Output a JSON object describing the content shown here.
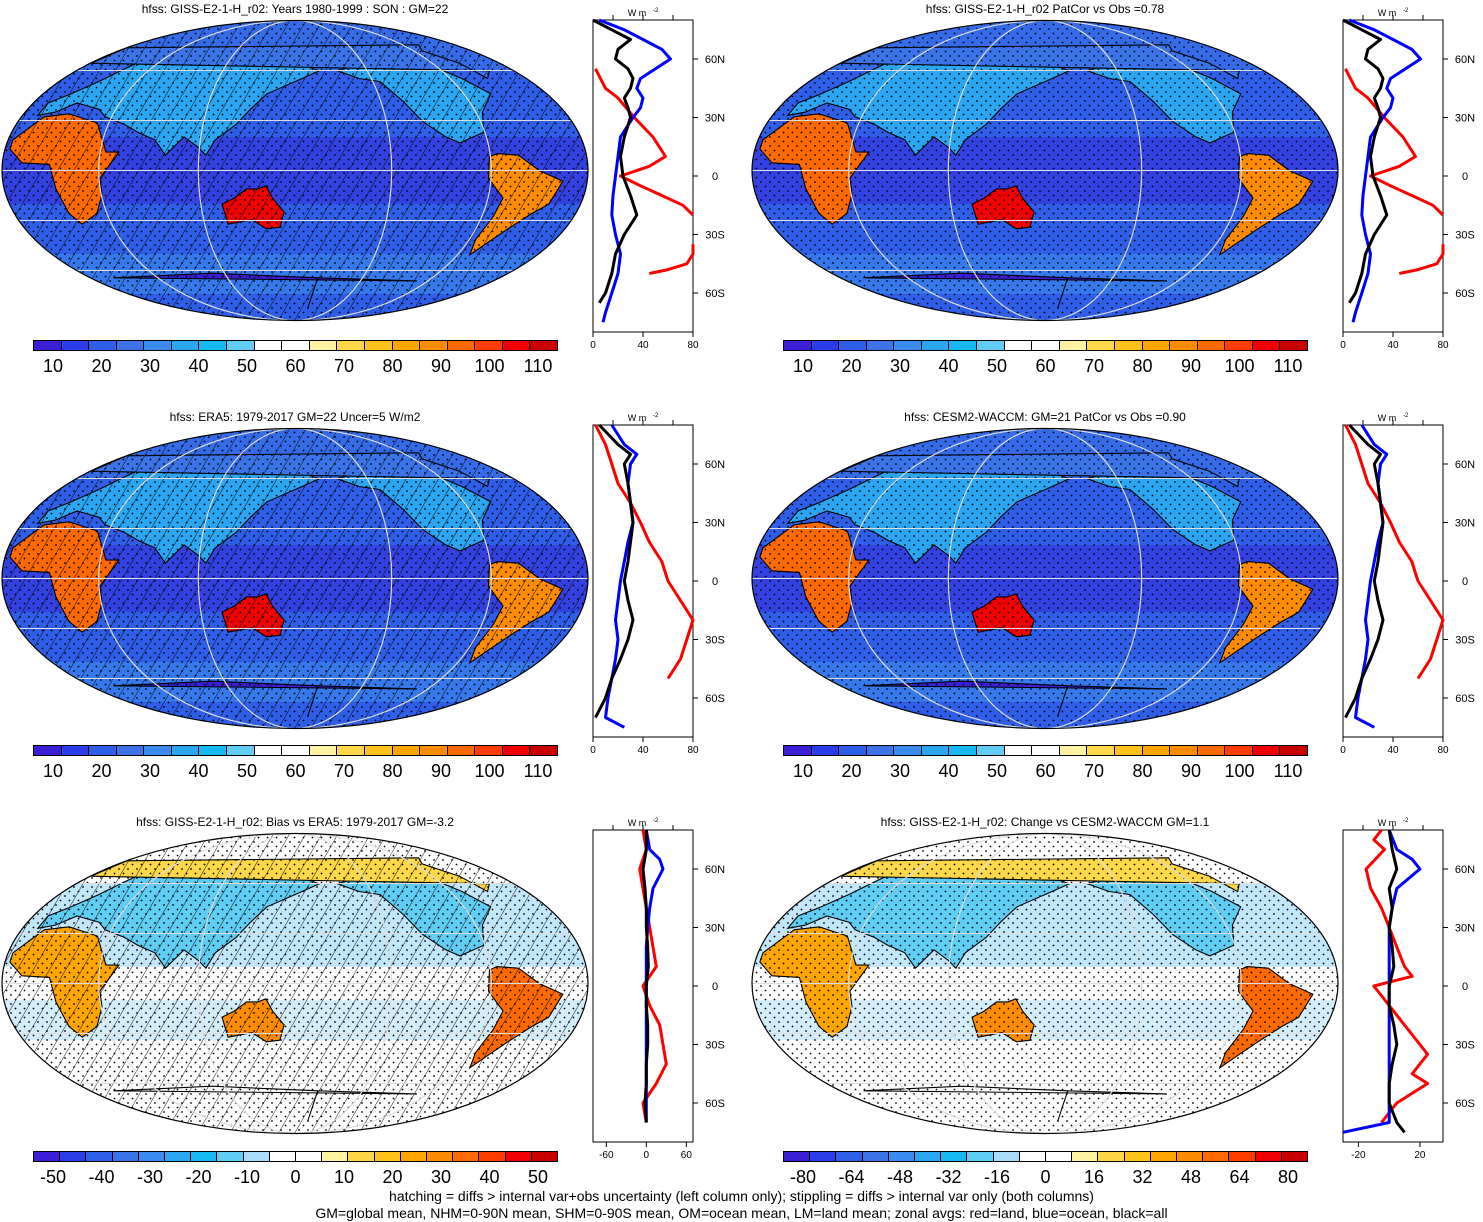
{
  "footer": {
    "line1": "hatching = diffs > internal var+obs uncertainty (left column only); stippling = diffs > internal var only (both columns)",
    "line2": "GM=global mean, NHM=0-90N mean, SHM=0-90S mean, OM=ocean mean, LM=land mean; zonal avgs: red=land, blue=ocean, black=all"
  },
  "zonal_units": "W m",
  "zonal_units_exp": "-2",
  "colors": {
    "land": "#ff0000",
    "ocean": "#0000ff",
    "all": "#000000",
    "abs_scale": [
      "#3a1fd6",
      "#2a3de8",
      "#2f5ee8",
      "#3a74e8",
      "#3b8cf0",
      "#2aa6f2",
      "#16b9f4",
      "#60cdf4",
      "#ffffff",
      "#ffffff",
      "#fff2a0",
      "#ffd84a",
      "#ffc21c",
      "#ffa500",
      "#ff8c00",
      "#ff6a00",
      "#ff3c00",
      "#f00000",
      "#c80000"
    ],
    "diff_scale": [
      "#3a1fd6",
      "#2a3de8",
      "#2f5ee8",
      "#3a74e8",
      "#3b8cf0",
      "#2aa6f2",
      "#16b9f4",
      "#60cdf4",
      "#a8dcf8",
      "#ffffff",
      "#ffffff",
      "#fff2a0",
      "#ffd84a",
      "#ffc21c",
      "#ffa500",
      "#ff8c00",
      "#ff6a00",
      "#ff3c00",
      "#f00000",
      "#c80000"
    ]
  },
  "chart_data": [
    {
      "type": "heatmap",
      "title": "hfss: GISS-E2-1-H_r02: Years 1980-1999 : SON : GM=22",
      "colorbar_labels": [
        "10",
        "20",
        "30",
        "40",
        "50",
        "60",
        "70",
        "80",
        "90",
        "100",
        "110"
      ],
      "hatching": true,
      "stippling": true,
      "zonal": {
        "type": "line",
        "xlabel": "W m-2",
        "xticks": [
          "0",
          "40",
          "80"
        ],
        "xlim": [
          0,
          80
        ],
        "yticks": [
          "60N",
          "30N",
          "0",
          "30S",
          "60S"
        ],
        "series": [
          {
            "name": "land",
            "lat": [
              55,
              45,
              40,
              30,
              20,
              10,
              5,
              0,
              -5,
              -10,
              -15,
              -20
            ],
            "values": [
              2,
              10,
              20,
              33,
              48,
              58,
              45,
              22,
              38,
              55,
              72,
              80
            ]
          },
          {
            "name": "land",
            "lat": [
              -35,
              -40,
              -45,
              -48,
              -50
            ],
            "values": [
              90,
              80,
              75,
              60,
              45
            ]
          },
          {
            "name": "ocean",
            "lat": [
              80,
              75,
              70,
              65,
              60,
              55,
              50,
              45,
              40,
              35,
              30,
              20,
              10,
              0,
              -10,
              -20,
              -30,
              -40,
              -50,
              -60,
              -70,
              -75
            ],
            "values": [
              5,
              25,
              40,
              55,
              62,
              50,
              38,
              35,
              40,
              38,
              32,
              22,
              20,
              18,
              16,
              15,
              18,
              22,
              20,
              15,
              10,
              8
            ]
          },
          {
            "name": "all",
            "lat": [
              80,
              75,
              70,
              65,
              60,
              55,
              50,
              45,
              40,
              35,
              30,
              20,
              10,
              0,
              -10,
              -20,
              -30,
              -40,
              -50,
              -60,
              -65
            ],
            "values": [
              0,
              15,
              30,
              20,
              18,
              28,
              32,
              30,
              25,
              28,
              30,
              25,
              22,
              24,
              30,
              35,
              25,
              18,
              15,
              10,
              5
            ]
          }
        ]
      }
    },
    {
      "type": "heatmap",
      "title": "hfss: GISS-E2-1-H_r02 PatCor vs Obs =0.78",
      "colorbar_labels": [
        "10",
        "20",
        "30",
        "40",
        "50",
        "60",
        "70",
        "80",
        "90",
        "100",
        "110"
      ],
      "hatching": false,
      "stippling": true,
      "zonal": {
        "type": "line",
        "xlabel": "W m-2",
        "xticks": [
          "0",
          "40",
          "80"
        ],
        "xlim": [
          0,
          80
        ],
        "yticks": [
          "60N",
          "30N",
          "0",
          "30S",
          "60S"
        ],
        "series": [
          {
            "name": "land",
            "lat": [
              55,
              45,
              40,
              30,
              20,
              10,
              5,
              0,
              -5,
              -10,
              -15,
              -20
            ],
            "values": [
              2,
              10,
              20,
              33,
              48,
              58,
              45,
              22,
              38,
              55,
              72,
              80
            ]
          },
          {
            "name": "land",
            "lat": [
              -35,
              -40,
              -45,
              -48,
              -50
            ],
            "values": [
              90,
              80,
              75,
              60,
              45
            ]
          },
          {
            "name": "ocean",
            "lat": [
              80,
              75,
              70,
              65,
              60,
              55,
              50,
              45,
              40,
              35,
              30,
              20,
              10,
              0,
              -10,
              -20,
              -30,
              -40,
              -50,
              -60,
              -70,
              -75
            ],
            "values": [
              5,
              25,
              40,
              55,
              62,
              50,
              38,
              35,
              40,
              38,
              32,
              22,
              20,
              18,
              16,
              15,
              18,
              22,
              20,
              15,
              10,
              8
            ]
          },
          {
            "name": "all",
            "lat": [
              80,
              75,
              70,
              65,
              60,
              55,
              50,
              45,
              40,
              35,
              30,
              20,
              10,
              0,
              -10,
              -20,
              -30,
              -40,
              -50,
              -60,
              -65
            ],
            "values": [
              0,
              15,
              30,
              20,
              18,
              28,
              32,
              30,
              25,
              28,
              30,
              25,
              22,
              24,
              30,
              35,
              25,
              18,
              15,
              10,
              5
            ]
          }
        ]
      }
    },
    {
      "type": "heatmap",
      "title": "hfss: ERA5: 1979-2017 GM=22 Uncer=5 W/m2",
      "colorbar_labels": [
        "10",
        "20",
        "30",
        "40",
        "50",
        "60",
        "70",
        "80",
        "90",
        "100",
        "110"
      ],
      "hatching": true,
      "stippling": true,
      "zonal": {
        "type": "line",
        "xlabel": "W m-2",
        "xticks": [
          "0",
          "40",
          "80"
        ],
        "xlim": [
          0,
          80
        ],
        "yticks": [
          "60N",
          "30N",
          "0",
          "30S",
          "60S"
        ],
        "series": [
          {
            "name": "land",
            "lat": [
              80,
              70,
              60,
              50,
              40,
              30,
              20,
              10,
              0,
              -10,
              -20,
              -30,
              -40,
              -50
            ],
            "values": [
              2,
              10,
              15,
              20,
              30,
              38,
              45,
              55,
              60,
              70,
              80,
              75,
              70,
              60
            ]
          },
          {
            "name": "ocean",
            "lat": [
              80,
              70,
              65,
              60,
              50,
              40,
              30,
              20,
              10,
              0,
              -10,
              -20,
              -30,
              -40,
              -50,
              -60,
              -70,
              -75
            ],
            "values": [
              15,
              25,
              35,
              30,
              28,
              30,
              32,
              28,
              25,
              22,
              20,
              18,
              20,
              18,
              15,
              12,
              10,
              25
            ]
          },
          {
            "name": "all",
            "lat": [
              80,
              70,
              65,
              60,
              50,
              40,
              30,
              20,
              10,
              0,
              -10,
              -20,
              -30,
              -40,
              -50,
              -60,
              -70
            ],
            "values": [
              5,
              20,
              30,
              25,
              28,
              30,
              32,
              30,
              28,
              25,
              28,
              32,
              28,
              22,
              15,
              10,
              2
            ]
          }
        ]
      }
    },
    {
      "type": "heatmap",
      "title": "hfss: CESM2-WACCM: GM=21 PatCor vs Obs =0.90",
      "colorbar_labels": [
        "10",
        "20",
        "30",
        "40",
        "50",
        "60",
        "70",
        "80",
        "90",
        "100",
        "110"
      ],
      "hatching": false,
      "stippling": true,
      "zonal": {
        "type": "line",
        "xlabel": "W m-2",
        "xticks": [
          "0",
          "40",
          "80"
        ],
        "xlim": [
          0,
          80
        ],
        "yticks": [
          "60N",
          "30N",
          "0",
          "30S",
          "60S"
        ],
        "series": [
          {
            "name": "land",
            "lat": [
              80,
              70,
              60,
              50,
              40,
              30,
              20,
              10,
              0,
              -10,
              -20,
              -30,
              -40,
              -50
            ],
            "values": [
              2,
              10,
              15,
              20,
              30,
              38,
              45,
              55,
              60,
              70,
              80,
              75,
              70,
              60
            ]
          },
          {
            "name": "ocean",
            "lat": [
              80,
              70,
              65,
              60,
              50,
              40,
              30,
              20,
              10,
              0,
              -10,
              -20,
              -30,
              -40,
              -50,
              -60,
              -70,
              -75
            ],
            "values": [
              15,
              25,
              35,
              30,
              28,
              30,
              32,
              28,
              25,
              22,
              20,
              18,
              20,
              18,
              15,
              12,
              10,
              25
            ]
          },
          {
            "name": "all",
            "lat": [
              80,
              70,
              65,
              60,
              50,
              40,
              30,
              20,
              10,
              0,
              -10,
              -20,
              -30,
              -40,
              -50,
              -60,
              -70
            ],
            "values": [
              5,
              20,
              30,
              25,
              28,
              30,
              32,
              30,
              28,
              25,
              28,
              32,
              28,
              22,
              15,
              10,
              2
            ]
          }
        ]
      }
    },
    {
      "type": "heatmap",
      "title": "hfss: GISS-E2-1-H_r02: Bias vs ERA5: 1979-2017  GM=-3.2",
      "colorbar_labels": [
        "-50",
        "-40",
        "-30",
        "-20",
        "-10",
        "0",
        "10",
        "20",
        "30",
        "40",
        "50"
      ],
      "hatching": true,
      "stippling": true,
      "zonal": {
        "type": "line",
        "xlabel": "W m-2",
        "xticks": [
          "-60",
          "0",
          "60"
        ],
        "xlim": [
          -80,
          70
        ],
        "yticks": [
          "60N",
          "30N",
          "0",
          "30S",
          "60S"
        ],
        "series": [
          {
            "name": "land",
            "lat": [
              80,
              70,
              60,
              50,
              40,
              30,
              20,
              10,
              0,
              -10,
              -20,
              -30,
              -40,
              -50,
              -60,
              -70
            ],
            "values": [
              -5,
              0,
              -10,
              -5,
              0,
              5,
              10,
              15,
              -5,
              5,
              20,
              25,
              30,
              15,
              -5,
              0
            ]
          },
          {
            "name": "ocean",
            "lat": [
              80,
              70,
              65,
              60,
              50,
              40,
              30,
              20,
              10,
              0,
              -10,
              -20,
              -30,
              -40,
              -50,
              -60,
              -70
            ],
            "values": [
              0,
              5,
              20,
              25,
              10,
              5,
              2,
              0,
              0,
              0,
              0,
              0,
              0,
              0,
              0,
              0,
              0
            ]
          },
          {
            "name": "all",
            "lat": [
              80,
              70,
              60,
              50,
              40,
              30,
              20,
              10,
              0,
              -10,
              -20,
              -30,
              -40,
              -50,
              -60,
              -70
            ],
            "values": [
              0,
              0,
              -5,
              -2,
              0,
              0,
              2,
              3,
              0,
              0,
              2,
              2,
              0,
              0,
              -2,
              0
            ]
          }
        ]
      }
    },
    {
      "type": "heatmap",
      "title": "hfss: GISS-E2-1-H_r02: Change vs CESM2-WACCM GM=1.1",
      "colorbar_labels": [
        "-80",
        "-64",
        "-48",
        "-32",
        "-16",
        "0",
        "16",
        "32",
        "48",
        "64",
        "80"
      ],
      "hatching": false,
      "stippling": true,
      "zonal": {
        "type": "line",
        "xlabel": "W m-2",
        "xticks": [
          "-20",
          "20"
        ],
        "xlim": [
          -30,
          35
        ],
        "yticks": [
          "60N",
          "30N",
          "0",
          "30S",
          "60S"
        ],
        "series": [
          {
            "name": "land",
            "lat": [
              80,
              75,
              70,
              60,
              50,
              40,
              30,
              20,
              10,
              5,
              0,
              -10,
              -20,
              -30,
              -35,
              -40,
              -45,
              -50,
              -60,
              -70
            ],
            "values": [
              -5,
              -10,
              -3,
              -15,
              -12,
              -5,
              0,
              5,
              10,
              15,
              -10,
              0,
              10,
              20,
              25,
              20,
              15,
              25,
              5,
              -5
            ]
          },
          {
            "name": "ocean",
            "lat": [
              80,
              70,
              65,
              60,
              50,
              40,
              30,
              20,
              10,
              0,
              -10,
              -20,
              -30,
              -40,
              -50,
              -60,
              -70,
              -75
            ],
            "values": [
              0,
              5,
              15,
              20,
              5,
              2,
              0,
              0,
              0,
              0,
              0,
              0,
              0,
              0,
              0,
              0,
              0,
              -40
            ]
          },
          {
            "name": "all",
            "lat": [
              80,
              70,
              60,
              50,
              40,
              30,
              20,
              10,
              0,
              -10,
              -20,
              -30,
              -40,
              -50,
              -60,
              -70,
              -75
            ],
            "values": [
              0,
              2,
              5,
              0,
              2,
              0,
              2,
              3,
              0,
              0,
              3,
              5,
              2,
              0,
              0,
              5,
              10
            ]
          }
        ]
      }
    }
  ]
}
